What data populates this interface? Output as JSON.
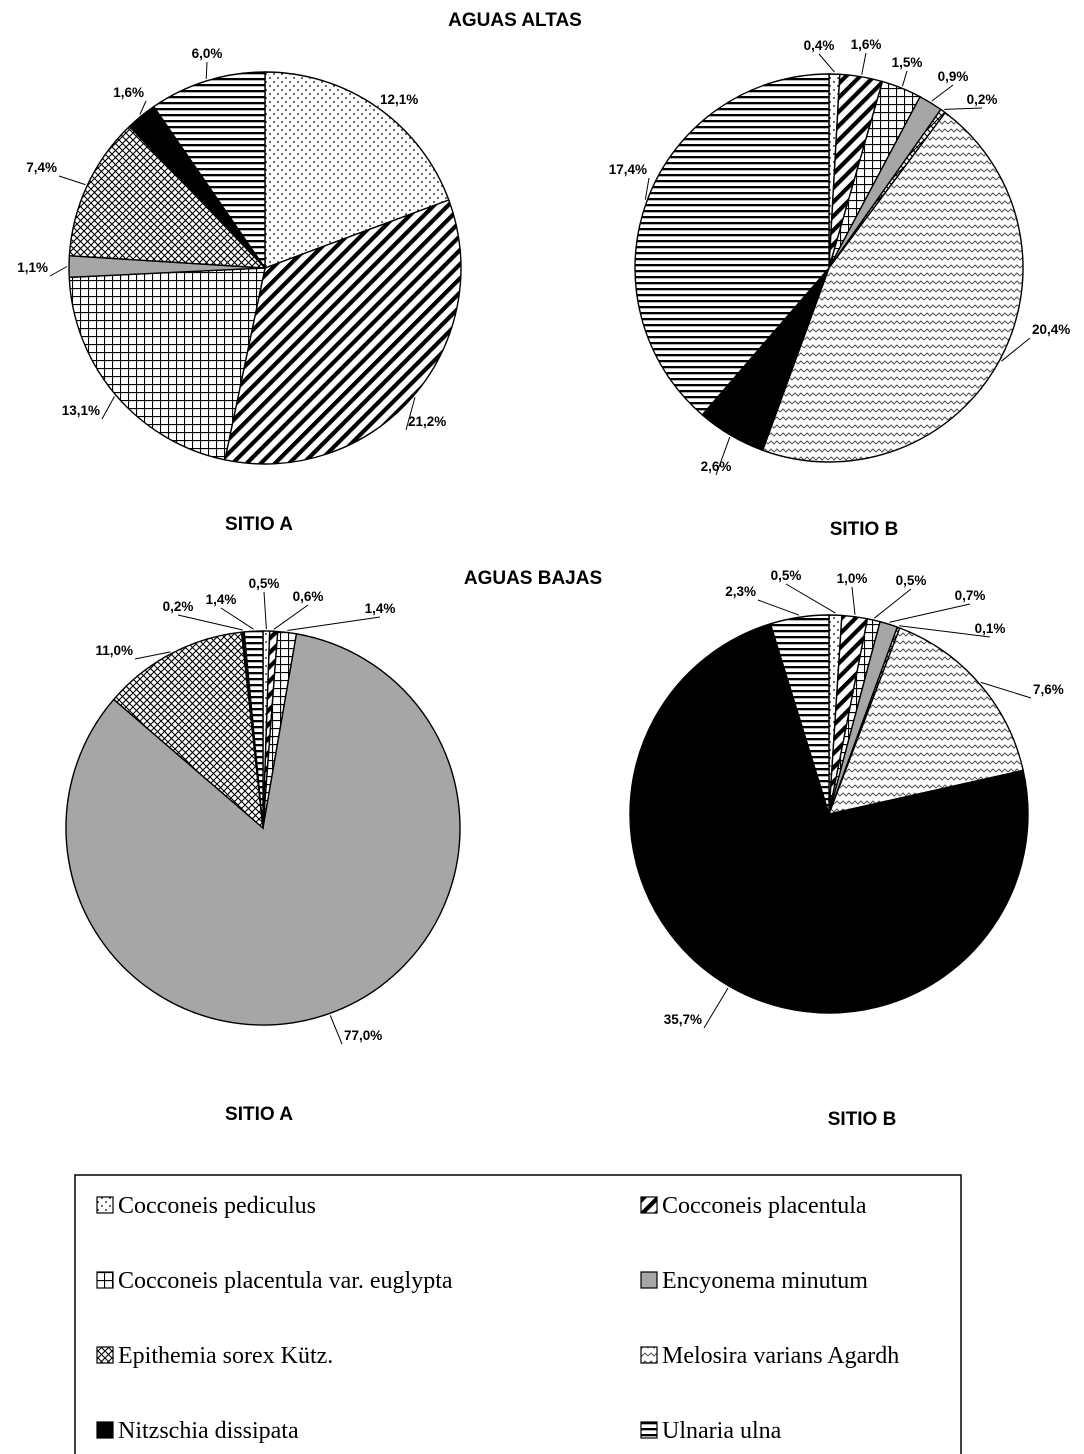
{
  "figure": {
    "group_titles": [
      "AGUAS ALTAS",
      "AGUAS BAJAS"
    ],
    "site_labels": {
      "high_a": "SITIO A",
      "high_b": "SITIO B",
      "low_a": "SITIO A",
      "low_b": "SITIO B"
    }
  },
  "chart_data": [
    {
      "type": "pie",
      "group": "AGUAS ALTAS",
      "site": "SITIO A",
      "slices": [
        {
          "category": "Cocconeis pediculus",
          "value": 12.1,
          "label": "12,1%"
        },
        {
          "category": "Cocconeis placentula",
          "value": 21.2,
          "label": "21,2%"
        },
        {
          "category": "Cocconeis placentula var. euglypta",
          "value": 13.1,
          "label": "13,1%"
        },
        {
          "category": "Encyonema minutum",
          "value": 1.1,
          "label": "1,1%"
        },
        {
          "category": "Epithemia sorex Kütz.",
          "value": 7.4,
          "label": "7,4%"
        },
        {
          "category": "Nitzschia dissipata",
          "value": 1.6,
          "label": "1,6%"
        },
        {
          "category": "Ulnaria ulna",
          "value": 6.0,
          "label": "6,0%"
        }
      ]
    },
    {
      "type": "pie",
      "group": "AGUAS ALTAS",
      "site": "SITIO B",
      "slices": [
        {
          "category": "Cocconeis pediculus",
          "value": 0.4,
          "label": "0,4%"
        },
        {
          "category": "Cocconeis placentula",
          "value": 1.6,
          "label": "1,6%"
        },
        {
          "category": "Cocconeis placentula var. euglypta",
          "value": 1.5,
          "label": "1,5%"
        },
        {
          "category": "Encyonema minutum",
          "value": 0.9,
          "label": "0,9%"
        },
        {
          "category": "Epithemia sorex Kütz.",
          "value": 0.2,
          "label": "0,2%"
        },
        {
          "category": "Melosira varians Agardh",
          "value": 20.4,
          "label": "20,4%"
        },
        {
          "category": "Nitzschia dissipata",
          "value": 2.6,
          "label": "2,6%"
        },
        {
          "category": "Ulnaria ulna",
          "value": 17.4,
          "label": "17,4%"
        }
      ]
    },
    {
      "type": "pie",
      "group": "AGUAS BAJAS",
      "site": "SITIO A",
      "slices": [
        {
          "category": "Cocconeis pediculus",
          "value": 0.5,
          "label": "0,5%"
        },
        {
          "category": "Cocconeis placentula",
          "value": 0.6,
          "label": "0,6%"
        },
        {
          "category": "Cocconeis placentula var. euglypta",
          "value": 1.4,
          "label": "1,4%"
        },
        {
          "category": "Encyonema minutum",
          "value": 77.0,
          "label": "77,0%"
        },
        {
          "category": "Epithemia sorex Kütz.",
          "value": 11.0,
          "label": "11,0%"
        },
        {
          "category": "Nitzschia dissipata",
          "value": 0.2,
          "label": "0,2%"
        },
        {
          "category": "Ulnaria ulna",
          "value": 1.4,
          "label": "1,4%"
        }
      ]
    },
    {
      "type": "pie",
      "group": "AGUAS BAJAS",
      "site": "SITIO B",
      "slices": [
        {
          "category": "Cocconeis pediculus",
          "value": 0.5,
          "label": "0,5%"
        },
        {
          "category": "Cocconeis placentula",
          "value": 1.0,
          "label": "1,0%"
        },
        {
          "category": "Cocconeis placentula var. euglypta",
          "value": 0.5,
          "label": "0,5%"
        },
        {
          "category": "Encyonema minutum",
          "value": 0.7,
          "label": "0,7%"
        },
        {
          "category": "Epithemia sorex Kütz.",
          "value": 0.1,
          "label": "0,1%"
        },
        {
          "category": "Melosira varians Agardh",
          "value": 7.6,
          "label": "7,6%"
        },
        {
          "category": "Nitzschia dissipata",
          "value": 35.7,
          "label": "35,7%"
        },
        {
          "category": "Ulnaria ulna",
          "value": 2.3,
          "label": "2,3%"
        }
      ]
    }
  ],
  "legend": {
    "placement": "bottom",
    "entries": [
      {
        "label": "Cocconeis pediculus",
        "pattern": "dots"
      },
      {
        "label": "Cocconeis placentula",
        "pattern": "diagonal-stripes"
      },
      {
        "label": "Cocconeis placentula var. euglypta",
        "pattern": "grid"
      },
      {
        "label": "Encyonema minutum",
        "pattern": "solid-gray"
      },
      {
        "label": "Epithemia sorex Kütz.",
        "pattern": "crosshatch"
      },
      {
        "label": "Melosira varians Agardh",
        "pattern": "waves"
      },
      {
        "label": "Nitzschia dissipata",
        "pattern": "solid-black"
      },
      {
        "label": "Ulnaria ulna",
        "pattern": "horizontal-stripes"
      }
    ]
  },
  "colors": {
    "gray_fill": "#a6a6a6",
    "black_fill": "#000000",
    "stroke": "#000000"
  }
}
